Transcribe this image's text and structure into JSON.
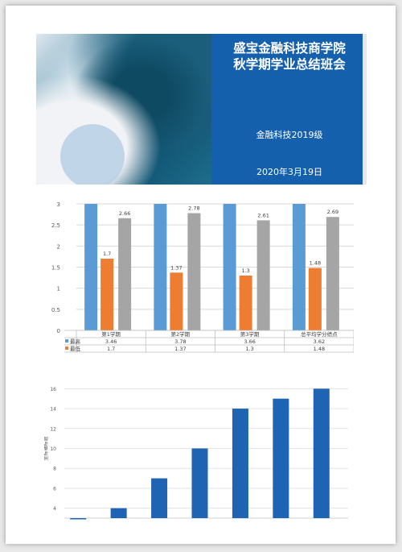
{
  "slide": {
    "title_line1": "盛宝金融科技商学院",
    "title_line2": "秋学期学业总结班会",
    "subtitle": "金融科技2019级",
    "date": "2020年3月19日"
  },
  "chart_data": [
    {
      "type": "bar",
      "categories": [
        "第1学期",
        "第2学期",
        "第3学期",
        "总平均学分绩点"
      ],
      "series": [
        {
          "name": "最高",
          "values": [
            3.46,
            3.78,
            3.66,
            3.62
          ],
          "color": "#5b9bd5"
        },
        {
          "name": "最低",
          "values": [
            1.7,
            1.37,
            1.3,
            1.48
          ],
          "color": "#ed7d31"
        },
        {
          "name": "",
          "values": [
            2.66,
            2.78,
            2.61,
            2.69
          ],
          "color": "#a5a5a5"
        }
      ],
      "ylim": [
        0,
        3
      ],
      "yticks": [
        "0",
        "0.5",
        "1",
        "1.5",
        "2",
        "2.5",
        "3"
      ],
      "data_labels_series": [
        1,
        2
      ],
      "data_table": true,
      "grid": true
    },
    {
      "type": "bar",
      "categories": [
        "",
        "",
        "",
        "",
        "",
        "",
        ""
      ],
      "values": [
        3,
        4,
        7,
        10,
        14,
        15,
        16
      ],
      "ylabel": "坐标轴标题",
      "ylim": [
        3,
        17
      ],
      "yticks": [
        "4",
        "6",
        "8",
        "10",
        "12",
        "14",
        "16"
      ],
      "color": "#1f63b3",
      "grid": true
    }
  ]
}
